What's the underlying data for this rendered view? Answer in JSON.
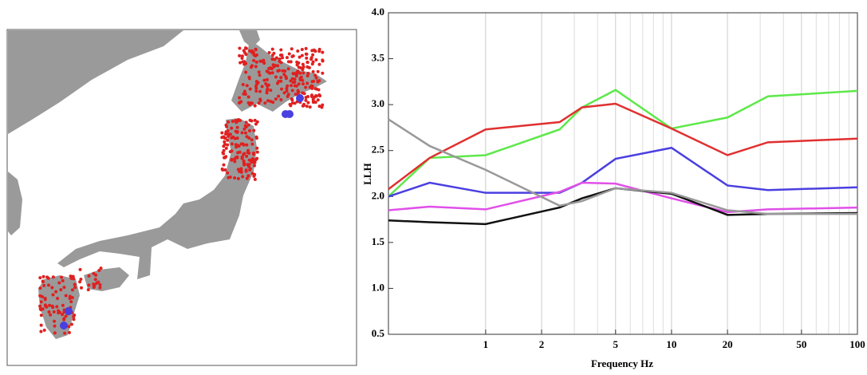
{
  "chart_data": {
    "type": "line",
    "xlabel": "Frequency Hz",
    "ylabel": "LLH",
    "xscale": "log",
    "grid": "x",
    "xlim": [
      0.3,
      100
    ],
    "ylim": [
      0.5,
      4.0
    ],
    "xticks": [
      1,
      2,
      5,
      10,
      20,
      50,
      100
    ],
    "xminorticks": [
      3,
      4,
      6,
      7,
      8,
      9,
      30,
      40,
      60,
      70,
      80,
      90
    ],
    "yticks": [
      0.5,
      {
        "value": 1,
        "label": "1.0"
      },
      1.5,
      {
        "value": 2,
        "label": "2.0"
      },
      2.5,
      {
        "value": 3,
        "label": "3.0"
      },
      3.5,
      {
        "value": 4,
        "label": "4.0"
      }
    ],
    "x": [
      0.3,
      0.5,
      1,
      2.5,
      3.3,
      5,
      10,
      20,
      33,
      100
    ],
    "series": [
      {
        "color": "#5ee84a",
        "values": [
          2.0,
          2.42,
          2.45,
          2.73,
          2.97,
          3.16,
          2.74,
          2.86,
          3.09,
          3.15
        ]
      },
      {
        "color": "#e03030",
        "values": [
          2.08,
          2.42,
          2.73,
          2.81,
          2.97,
          3.01,
          2.74,
          2.45,
          2.59,
          2.63
        ]
      },
      {
        "color": "#4a3fe0",
        "values": [
          2.0,
          2.15,
          2.04,
          2.04,
          2.15,
          2.41,
          2.53,
          2.12,
          2.07,
          2.1
        ]
      },
      {
        "color": "#e050e8",
        "values": [
          1.85,
          1.89,
          1.86,
          2.05,
          2.15,
          2.14,
          1.98,
          1.83,
          1.86,
          1.88
        ]
      },
      {
        "color": "#111111",
        "values": [
          1.74,
          1.72,
          1.7,
          1.88,
          1.98,
          2.09,
          2.03,
          1.8,
          1.81,
          1.82
        ]
      },
      {
        "color": "#999999",
        "values": [
          2.84,
          2.55,
          2.29,
          1.9,
          1.95,
          2.09,
          2.04,
          1.85,
          1.81,
          1.81
        ]
      }
    ]
  }
}
